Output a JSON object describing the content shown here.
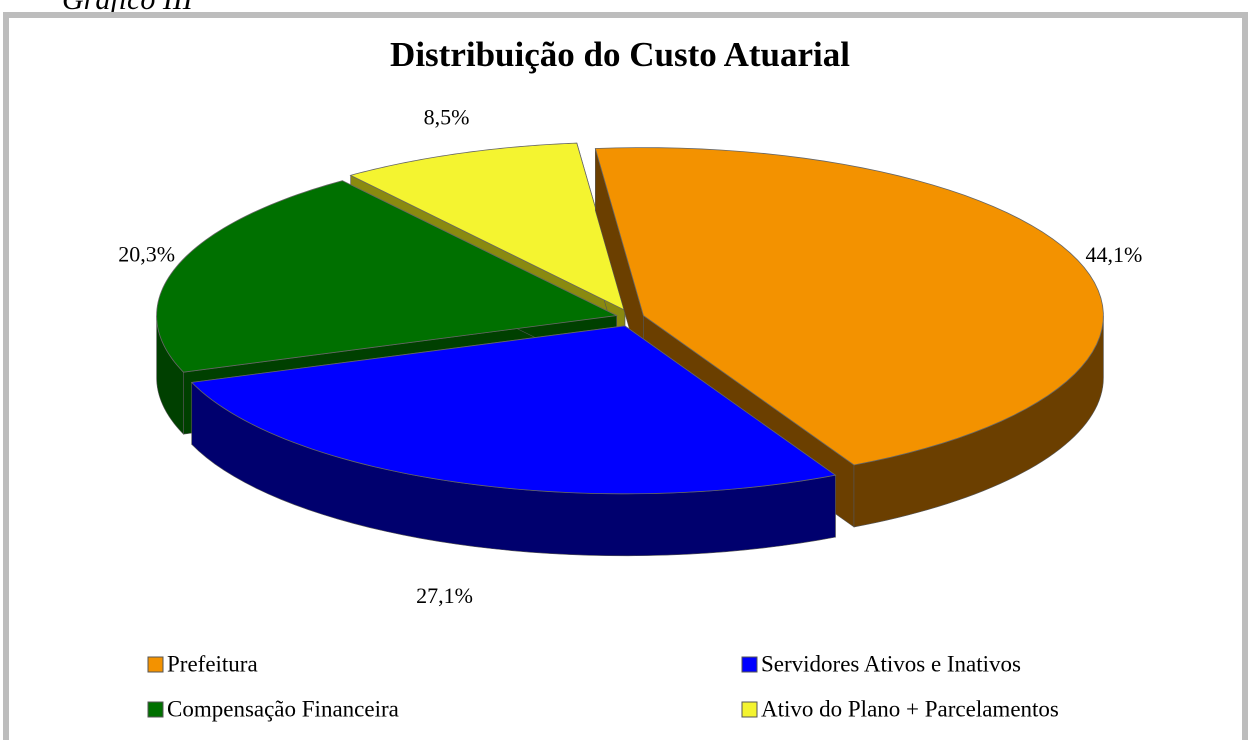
{
  "caption": "Gráfico III",
  "chart_data": {
    "type": "pie3d",
    "title": "Distribuição do Custo Atuarial",
    "categories": [
      "Prefeitura",
      "Servidores Ativos e Inativos",
      "Compensação Financeira",
      "Ativo do Plano + Parcelamentos"
    ],
    "values": [
      44.1,
      27.1,
      20.3,
      8.5
    ],
    "value_labels": [
      "44,1%",
      "27,1%",
      "20,3%",
      "8,5%"
    ],
    "colors": [
      "#f39200",
      "#0000ff",
      "#007000",
      "#f4f430"
    ],
    "side_colors": [
      "#6b3f00",
      "#00006e",
      "#004000",
      "#8a8a10"
    ]
  }
}
